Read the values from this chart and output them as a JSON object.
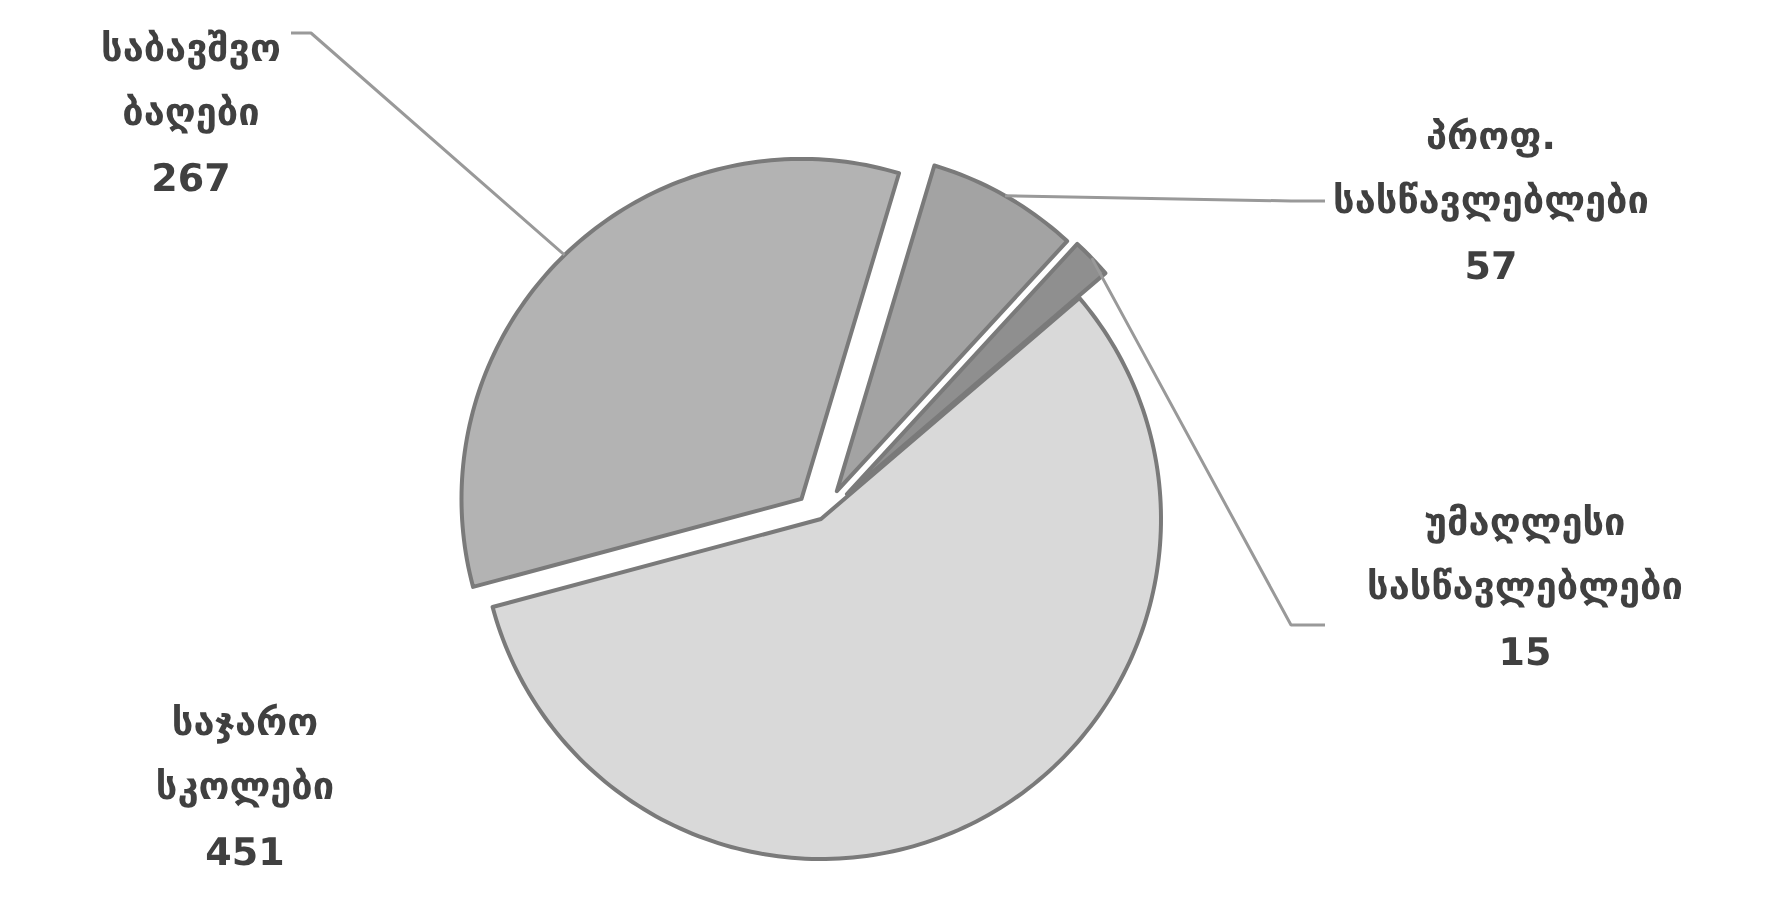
{
  "chart_data": {
    "type": "pie",
    "categories": [
      "საბავშვო ბაღები",
      "პროფ. სასწავლებლები",
      "უმაღლესი სასწავლებლები",
      "საჯარო სკოლები"
    ],
    "values": [
      267,
      57,
      15,
      451
    ],
    "colors": [
      "#b3b3b3",
      "#a3a3a3",
      "#8f8f8f",
      "#d9d9d9"
    ],
    "data_labels": true
  }
}
